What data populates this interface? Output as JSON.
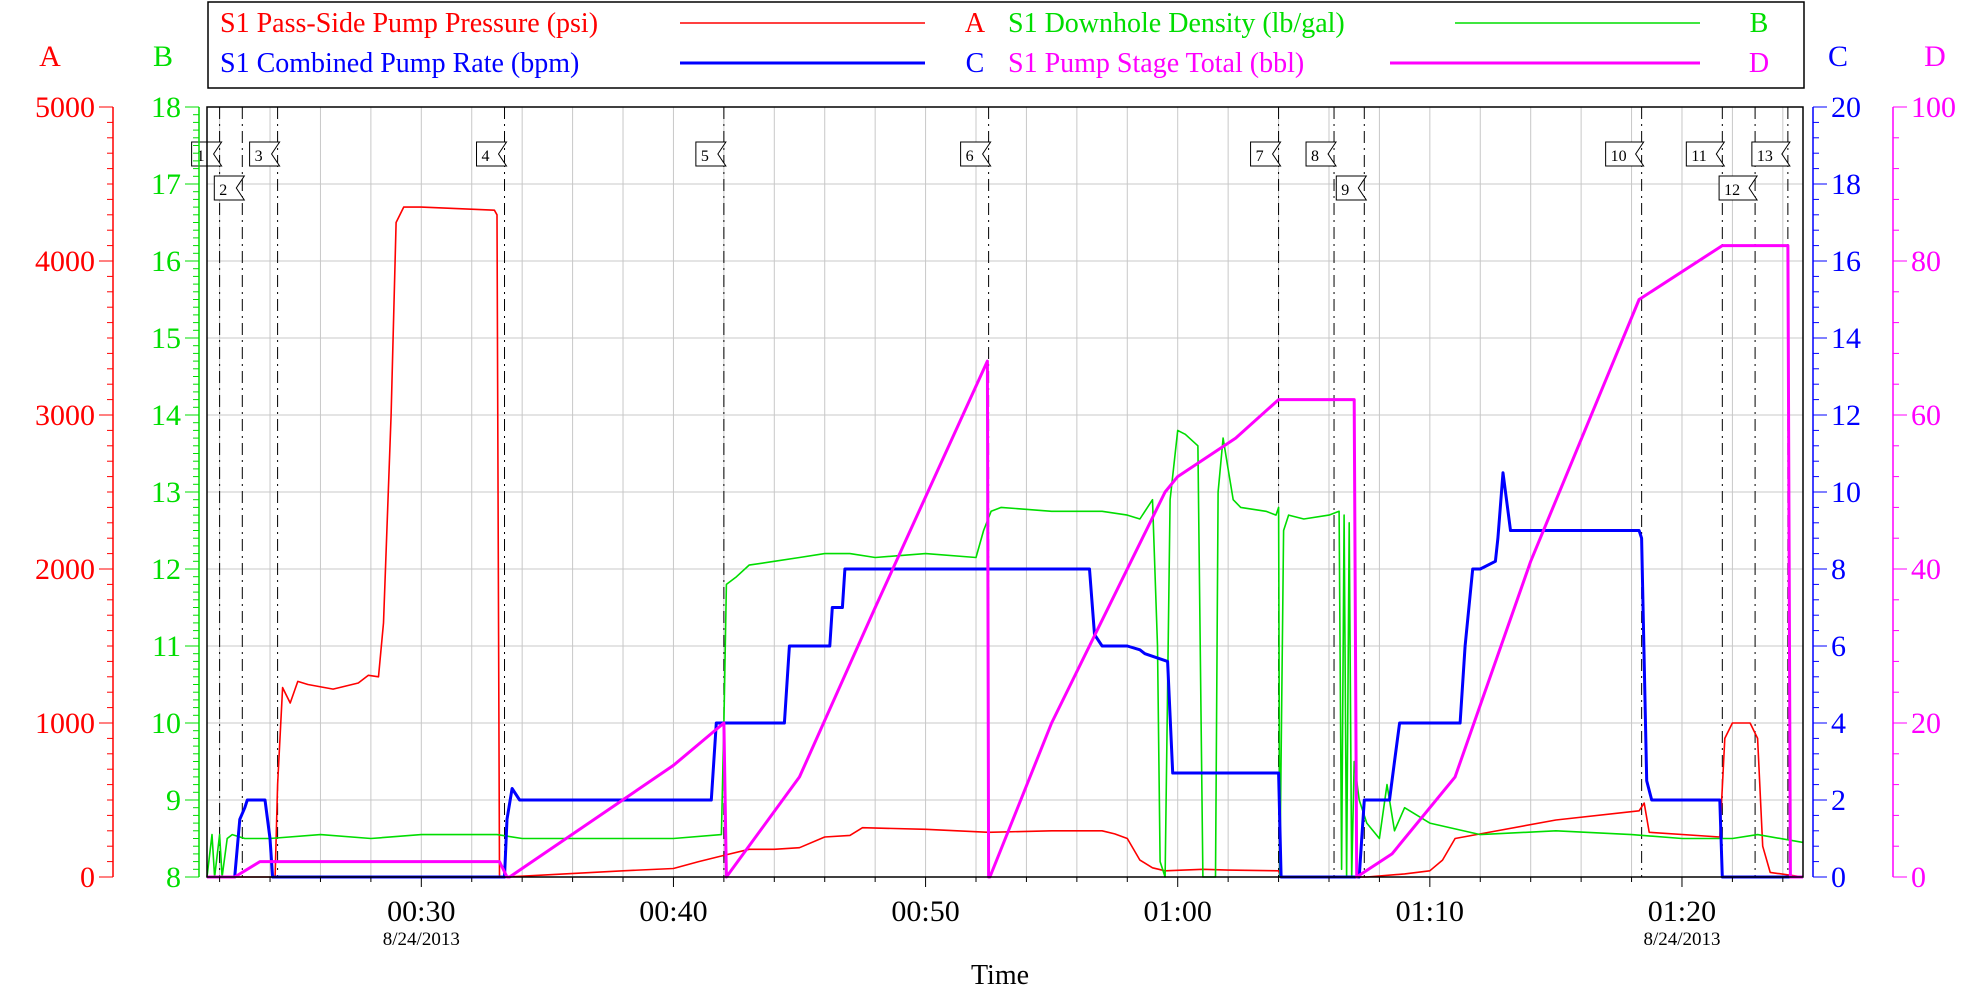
{
  "chart_data": {
    "type": "line",
    "xlabel": "Time",
    "x_unit": "minutes",
    "xlim": [
      21.5,
      84.8
    ],
    "x_ticks": [
      {
        "value": 30,
        "label": "00:30",
        "sub": "8/24/2013"
      },
      {
        "value": 40,
        "label": "00:40",
        "sub": ""
      },
      {
        "value": 50,
        "label": "00:50",
        "sub": ""
      },
      {
        "value": 60,
        "label": "01:00",
        "sub": ""
      },
      {
        "value": 70,
        "label": "01:10",
        "sub": ""
      },
      {
        "value": 80,
        "label": "01:20",
        "sub": "8/24/2013"
      }
    ],
    "axes": [
      {
        "id": "A",
        "color": "#ff0000",
        "side": "left",
        "min": 0,
        "max": 5000,
        "major": 1000,
        "minor": 100,
        "ticks": [
          "0",
          "1000",
          "2000",
          "3000",
          "4000",
          "5000"
        ]
      },
      {
        "id": "B",
        "color": "#00dd00",
        "side": "left",
        "min": 8,
        "max": 18,
        "major": 1,
        "minor": 0.1,
        "ticks": [
          "8",
          "9",
          "10",
          "11",
          "12",
          "13",
          "14",
          "15",
          "16",
          "17",
          "18"
        ]
      },
      {
        "id": "C",
        "color": "#0000ff",
        "side": "right",
        "min": 0,
        "max": 20,
        "major": 2,
        "minor": 0.4,
        "ticks": [
          "0",
          "2",
          "4",
          "6",
          "8",
          "10",
          "12",
          "14",
          "16",
          "18",
          "20"
        ]
      },
      {
        "id": "D",
        "color": "#ff00ff",
        "side": "right",
        "min": 0,
        "max": 100,
        "major": 20,
        "minor": 4,
        "ticks": [
          "0",
          "20",
          "40",
          "60",
          "80",
          "100"
        ]
      }
    ],
    "legend": [
      {
        "name": "S1 Pass-Side Pump Pressure (psi)",
        "axis": "A",
        "color": "#ff0000"
      },
      {
        "name": "S1 Downhole Density (lb/gal)",
        "axis": "B",
        "color": "#00dd00"
      },
      {
        "name": "S1 Combined Pump Rate (bpm)",
        "axis": "C",
        "color": "#0000ff"
      },
      {
        "name": "S1 Pump Stage Total (bbl)",
        "axis": "D",
        "color": "#ff00ff"
      }
    ],
    "events": [
      {
        "label": "1",
        "x": 22.0,
        "row": 0
      },
      {
        "label": "2",
        "x": 22.9,
        "row": 1
      },
      {
        "label": "3",
        "x": 24.3,
        "row": 0
      },
      {
        "label": "4",
        "x": 33.3,
        "row": 0
      },
      {
        "label": "5",
        "x": 42.0,
        "row": 0
      },
      {
        "label": "6",
        "x": 52.5,
        "row": 0
      },
      {
        "label": "7",
        "x": 64.0,
        "row": 0
      },
      {
        "label": "8",
        "x": 66.2,
        "row": 0
      },
      {
        "label": "9",
        "x": 67.4,
        "row": 1
      },
      {
        "label": "10",
        "x": 78.4,
        "row": 0
      },
      {
        "label": "11",
        "x": 81.6,
        "row": 0
      },
      {
        "label": "12",
        "x": 82.9,
        "row": 1
      },
      {
        "label": "13",
        "x": 84.2,
        "row": 0
      }
    ],
    "series": [
      {
        "name": "S1 Pass-Side Pump Pressure (psi)",
        "axis": "A",
        "color": "#ff0000",
        "x": [
          21.5,
          24.2,
          24.3,
          24.5,
          24.8,
          25.1,
          25.5,
          26.5,
          27.5,
          27.9,
          28.3,
          28.5,
          28.8,
          29.0,
          29.3,
          29.5,
          30.0,
          32.9,
          33.0,
          33.1,
          33.4,
          38,
          40,
          41,
          42,
          43,
          44,
          45,
          46,
          47,
          47.5,
          50,
          52.5,
          55,
          57,
          57.5,
          58,
          58.5,
          59,
          59.5,
          61,
          62,
          64,
          64.1,
          67.5,
          69,
          70,
          70.5,
          71,
          72,
          75,
          78.3,
          78.5,
          78.7,
          81.5,
          81.7,
          82,
          82.7,
          83.0,
          83.2,
          83.5,
          84.8
        ],
        "y": [
          0,
          0,
          600,
          1230,
          1130,
          1270,
          1250,
          1220,
          1260,
          1310,
          1300,
          1650,
          3000,
          4250,
          4350,
          4350,
          4350,
          4330,
          4300,
          0,
          0,
          40,
          55,
          100,
          140,
          180,
          180,
          190,
          260,
          270,
          320,
          310,
          290,
          300,
          300,
          280,
          250,
          110,
          60,
          40,
          50,
          45,
          40,
          0,
          0,
          20,
          40,
          110,
          250,
          280,
          370,
          430,
          480,
          290,
          260,
          900,
          1000,
          1000,
          900,
          200,
          30,
          0
        ]
      },
      {
        "name": "S1 Downhole Density (lb/gal)",
        "axis": "B",
        "color": "#00dd00",
        "x": [
          21.5,
          21.7,
          21.8,
          22.0,
          22.1,
          22.3,
          22.5,
          23.0,
          24,
          26,
          28,
          30,
          32,
          33,
          34,
          36,
          38,
          40,
          41.9,
          42.0,
          42.1,
          42.5,
          43,
          44,
          45,
          46,
          47,
          48,
          50,
          52,
          52.3,
          52.6,
          53,
          55,
          57,
          58,
          58.5,
          59,
          59.2,
          59.3,
          59.5,
          59.7,
          60.0,
          60.3,
          60.8,
          61.0,
          61.5,
          61.6,
          61.8,
          62.0,
          62.2,
          62.5,
          63.5,
          63.9,
          64.0,
          64.05,
          64.2,
          64.4,
          65,
          66,
          66.4,
          66.5,
          66.6,
          66.7,
          66.8,
          66.9,
          67.0,
          67.2,
          67.5,
          68,
          68.3,
          68.6,
          69,
          70,
          72,
          75,
          78,
          80,
          82,
          83,
          84.8
        ],
        "y": [
          8.0,
          8.55,
          8.0,
          8.55,
          8.0,
          8.5,
          8.55,
          8.5,
          8.5,
          8.55,
          8.5,
          8.55,
          8.55,
          8.55,
          8.5,
          8.5,
          8.5,
          8.5,
          8.55,
          10.0,
          11.8,
          11.9,
          12.05,
          12.1,
          12.15,
          12.2,
          12.2,
          12.15,
          12.2,
          12.15,
          12.5,
          12.75,
          12.8,
          12.75,
          12.75,
          12.7,
          12.65,
          12.9,
          11.0,
          8.2,
          8.0,
          12.9,
          13.8,
          13.75,
          13.6,
          8.0,
          8.0,
          13.0,
          13.7,
          13.3,
          12.9,
          12.8,
          12.75,
          12.7,
          12.8,
          8.0,
          12.5,
          12.7,
          12.65,
          12.7,
          12.75,
          8.1,
          12.7,
          8.0,
          12.6,
          8.0,
          9.5,
          9.0,
          8.7,
          8.5,
          9.2,
          8.6,
          8.9,
          8.7,
          8.55,
          8.6,
          8.55,
          8.5,
          8.5,
          8.55,
          8.45
        ]
      },
      {
        "name": "S1 Combined Pump Rate (bpm)",
        "axis": "C",
        "color": "#0000ff",
        "x": [
          21.5,
          22.6,
          22.8,
          23.0,
          23.1,
          23.8,
          24.0,
          24.1,
          33.3,
          33.4,
          33.6,
          33.9,
          41.5,
          41.7,
          42.0,
          44.4,
          44.6,
          44.7,
          46.2,
          46.3,
          46.7,
          46.8,
          56.5,
          56.7,
          57.0,
          58.0,
          58.5,
          58.7,
          59.6,
          59.8,
          64.0,
          64.1,
          67.2,
          67.4,
          68.4,
          68.6,
          68.8,
          71.2,
          71.4,
          71.7,
          72.0,
          72.6,
          72.7,
          72.9,
          73.2,
          78.3,
          78.4,
          78.6,
          78.8,
          81.5,
          81.6,
          84.8
        ],
        "y": [
          0,
          0,
          1.5,
          1.8,
          2.0,
          2.0,
          1.0,
          0,
          0,
          1.5,
          2.3,
          2.0,
          2.0,
          4.0,
          4.0,
          4.0,
          6.0,
          6.0,
          6.0,
          7.0,
          7.0,
          8.0,
          8.0,
          6.3,
          6.0,
          6.0,
          5.9,
          5.8,
          5.6,
          2.7,
          2.7,
          0,
          0,
          2.0,
          2.0,
          3.0,
          4.0,
          4.0,
          6.0,
          8.0,
          8.0,
          8.2,
          8.8,
          10.5,
          9.0,
          9.0,
          8.8,
          2.5,
          2.0,
          2.0,
          0,
          0
        ]
      },
      {
        "name": "S1 Pump Stage Total (bbl)",
        "axis": "D",
        "color": "#ff00ff",
        "x": [
          21.5,
          22.6,
          23.6,
          24.2,
          26.0,
          33.1,
          33.4,
          33.5,
          40.0,
          42.0,
          42.1,
          45.0,
          48.0,
          52.45,
          52.5,
          52.55,
          55.0,
          59.5,
          60.0,
          62.3,
          64.0,
          66.8,
          67.0,
          67.1,
          68.5,
          71.0,
          74.0,
          78.3,
          81.6,
          84.2,
          84.3,
          84.8
        ],
        "y": [
          0,
          0,
          2.0,
          2.0,
          2.0,
          2.0,
          0,
          0,
          14.5,
          20.0,
          0,
          13.0,
          35.0,
          67.0,
          0,
          0,
          20.0,
          50.0,
          52.0,
          57.0,
          62.0,
          62.0,
          62.0,
          0,
          3.0,
          13.0,
          41.0,
          75.0,
          82.0,
          82.0,
          0,
          0
        ]
      }
    ]
  }
}
